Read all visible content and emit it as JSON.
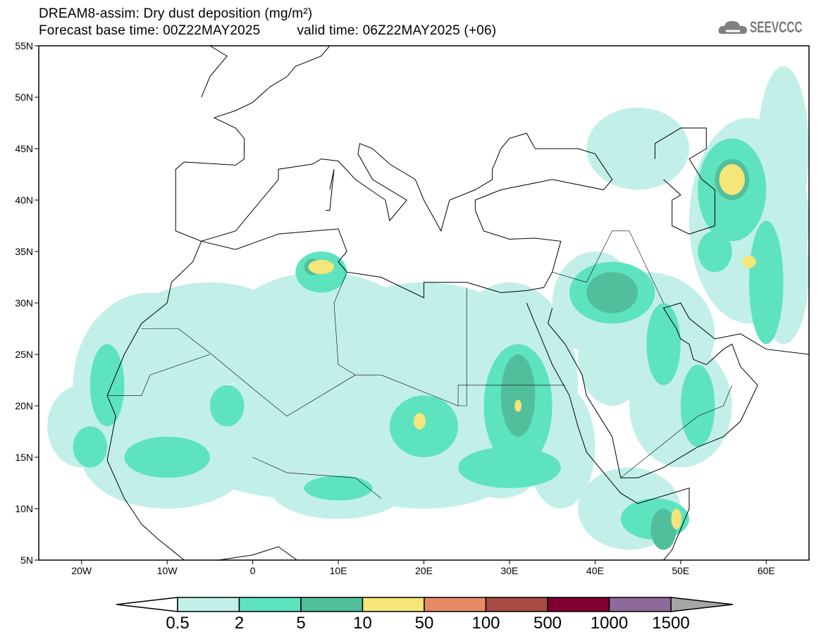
{
  "header": {
    "title": "DREAM8-assim: Dry dust deposition (mg/m²)",
    "base_time": "Forecast base time: 00Z22MAY2025",
    "valid_time": "valid time: 06Z22MAY2025 (+06)",
    "logo_text": "SEEVCCC"
  },
  "map": {
    "lon_range": [
      -25,
      65
    ],
    "lat_range": [
      5,
      55
    ],
    "lat_labels": [
      "55N",
      "50N",
      "45N",
      "40N",
      "35N",
      "30N",
      "25N",
      "20N",
      "15N",
      "10N",
      "5N"
    ],
    "lon_labels": [
      "20W",
      "10W",
      "0",
      "10E",
      "20E",
      "30E",
      "40E",
      "50E",
      "60E"
    ]
  },
  "colorbar": {
    "labels": [
      "0.5",
      "2",
      "5",
      "10",
      "50",
      "100",
      "500",
      "1000",
      "1500"
    ],
    "colors": [
      "#c2f0e8",
      "#5ee3bf",
      "#52bf9c",
      "#f5e67a",
      "#e88a66",
      "#a84a40",
      "#800030",
      "#8e6a9a"
    ],
    "over_color": "#a6a6a6",
    "under_color": "#ffffff"
  }
}
